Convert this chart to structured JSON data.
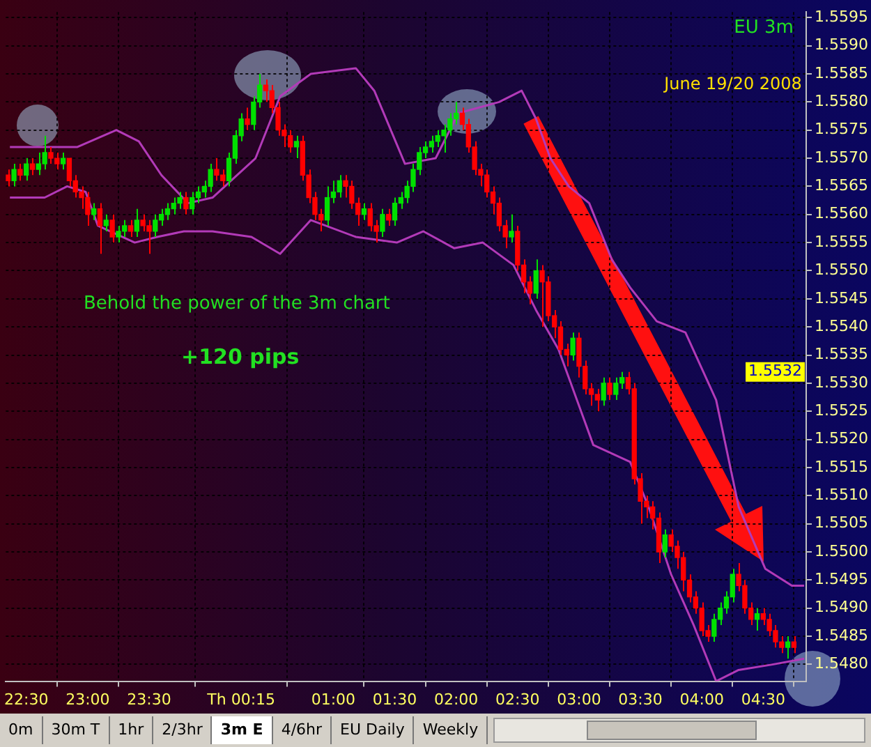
{
  "chart_data": {
    "type": "candlestick",
    "title": "EU 3m",
    "subtitle": "June 19/20 2008",
    "annotations": [
      "Behold the power of the 3m chart",
      "+120 pips",
      {
        "text": "1.5532",
        "y": 1.5532
      },
      "0m",
      "30m T",
      "1hr",
      "2/3hr",
      "3m E",
      "4/6hr",
      "EU Daily",
      "Weekly"
    ],
    "xlim": [
      "2008-06-18T22:20",
      "2008-06-19T04:51"
    ],
    "xticks": [
      {
        "value": "2008-06-18T22:30",
        "label": "22:30"
      },
      {
        "value": "2008-06-18T23:00",
        "label": "23:00"
      },
      {
        "value": "2008-06-18T23:30",
        "label": "23:30"
      },
      {
        "value": "2008-06-19T00:15",
        "label": "Th 00:15"
      },
      {
        "value": "2008-06-19T01:00",
        "label": "01:00"
      },
      {
        "value": "2008-06-19T01:30",
        "label": "01:30"
      },
      {
        "value": "2008-06-19T02:00",
        "label": "02:00"
      },
      {
        "value": "2008-06-19T02:30",
        "label": "02:30"
      },
      {
        "value": "2008-06-19T03:00",
        "label": "03:00"
      },
      {
        "value": "2008-06-19T03:30",
        "label": "03:30"
      },
      {
        "value": "2008-06-19T04:00",
        "label": "04:00"
      },
      {
        "value": "2008-06-19T04:30",
        "label": "04:30"
      }
    ],
    "ylim": [
      1.5477,
      1.5596
    ],
    "yticks": [
      {
        "value": 1.548,
        "label": "1.5480"
      },
      1.5485,
      {
        "value": 1.549,
        "label": "1.5490"
      },
      1.5495,
      {
        "value": 1.55,
        "label": "1.5500"
      },
      1.5505,
      {
        "value": 1.551,
        "label": "1.5510"
      },
      1.5515,
      {
        "value": 1.552,
        "label": "1.5520"
      },
      1.5525,
      {
        "value": 1.553,
        "label": "1.5530"
      },
      1.5535,
      {
        "value": 1.554,
        "label": "1.5540"
      },
      1.5545,
      {
        "value": 1.555,
        "label": "1.5550"
      },
      1.5555,
      {
        "value": 1.556,
        "label": "1.5560"
      },
      1.5565,
      {
        "value": 1.557,
        "label": "1.5570"
      },
      1.5575,
      {
        "value": 1.558,
        "label": "1.5580"
      },
      1.5585,
      {
        "value": 1.559,
        "label": "1.5590"
      },
      1.5595
    ],
    "grid": true,
    "legend": false,
    "marker": "none",
    "series": [
      {
        "x": [
          "2008-06-18T22:21",
          "2008-06-18T22:24",
          "2008-06-18T22:27",
          "2008-06-18T22:30",
          "2008-06-18T22:33",
          "2008-06-18T22:36",
          "2008-06-18T22:39",
          "2008-06-18T22:42",
          "2008-06-18T22:45",
          "2008-06-18T22:48",
          "2008-06-18T22:51",
          "2008-06-18T22:54",
          "2008-06-18T22:57",
          "2008-06-18T23:00",
          "2008-06-18T23:03",
          "2008-06-18T23:06",
          "2008-06-18T23:09",
          "2008-06-18T23:12",
          "2008-06-18T23:15",
          "2008-06-18T23:18",
          "2008-06-18T23:21",
          "2008-06-18T23:24",
          "2008-06-18T23:27",
          "2008-06-18T23:30",
          "2008-06-18T23:33",
          "2008-06-18T23:36",
          "2008-06-18T23:39",
          "2008-06-18T23:42",
          "2008-06-18T23:45",
          "2008-06-18T23:48",
          "2008-06-18T23:51",
          "2008-06-18T23:54",
          "2008-06-18T23:57",
          "2008-06-19T00:00",
          "2008-06-19T00:03",
          "2008-06-19T00:06",
          "2008-06-19T00:09",
          "2008-06-19T00:12",
          "2008-06-19T00:15",
          "2008-06-19T00:18",
          "2008-06-19T00:21",
          "2008-06-19T00:24",
          "2008-06-19T00:27",
          "2008-06-19T00:30",
          "2008-06-19T00:33",
          "2008-06-19T00:36",
          "2008-06-19T00:39",
          "2008-06-19T00:42",
          "2008-06-19T00:45",
          "2008-06-19T00:48",
          "2008-06-19T00:51",
          "2008-06-19T00:54",
          "2008-06-19T00:57",
          "2008-06-19T01:00",
          "2008-06-19T01:03",
          "2008-06-19T01:06",
          "2008-06-19T01:09",
          "2008-06-19T01:12",
          "2008-06-19T01:15",
          "2008-06-19T01:18",
          "2008-06-19T01:21",
          "2008-06-19T01:24",
          "2008-06-19T01:27",
          "2008-06-19T01:30",
          "2008-06-19T01:33",
          "2008-06-19T01:36",
          "2008-06-19T01:39",
          "2008-06-19T01:42",
          "2008-06-19T01:45",
          "2008-06-19T01:48",
          "2008-06-19T01:51",
          "2008-06-19T01:54",
          "2008-06-19T01:57",
          "2008-06-19T02:00",
          "2008-06-19T02:03",
          "2008-06-19T02:06",
          "2008-06-19T02:09",
          "2008-06-19T02:12",
          "2008-06-19T02:15",
          "2008-06-19T02:18",
          "2008-06-19T02:21",
          "2008-06-19T02:24",
          "2008-06-19T02:27",
          "2008-06-19T02:30",
          "2008-06-19T02:33",
          "2008-06-19T02:36",
          "2008-06-19T02:39",
          "2008-06-19T02:42",
          "2008-06-19T02:45",
          "2008-06-19T02:48",
          "2008-06-19T02:51",
          "2008-06-19T02:54",
          "2008-06-19T02:57",
          "2008-06-19T03:00",
          "2008-06-19T03:03",
          "2008-06-19T03:06",
          "2008-06-19T03:09",
          "2008-06-19T03:12",
          "2008-06-19T03:15",
          "2008-06-19T03:18",
          "2008-06-19T03:21",
          "2008-06-19T03:24",
          "2008-06-19T03:27",
          "2008-06-19T03:30",
          "2008-06-19T03:33",
          "2008-06-19T03:36",
          "2008-06-19T03:39",
          "2008-06-19T03:42",
          "2008-06-19T03:45",
          "2008-06-19T03:48",
          "2008-06-19T03:51",
          "2008-06-19T03:54",
          "2008-06-19T03:57",
          "2008-06-19T04:00",
          "2008-06-19T04:03",
          "2008-06-19T04:06",
          "2008-06-19T04:09",
          "2008-06-19T04:12",
          "2008-06-19T04:15",
          "2008-06-19T04:18",
          "2008-06-19T04:21",
          "2008-06-19T04:24",
          "2008-06-19T04:27",
          "2008-06-19T04:30",
          "2008-06-19T04:33",
          "2008-06-19T04:36",
          "2008-06-19T04:39",
          "2008-06-19T04:42",
          "2008-06-19T04:45"
        ],
        "ohlc": [
          [
            1.5567,
            1.5568,
            1.5565,
            1.5566
          ],
          [
            1.5566,
            1.5569,
            1.5565,
            1.5568
          ],
          [
            1.5568,
            1.5569,
            1.5566,
            1.5567
          ],
          [
            1.5567,
            1.557,
            1.5566,
            1.5569
          ],
          [
            1.5569,
            1.557,
            1.5567,
            1.5568
          ],
          [
            1.5568,
            1.5571,
            1.5567,
            1.5569
          ],
          [
            1.5569,
            1.5574,
            1.5568,
            1.5571
          ],
          [
            1.5571,
            1.5572,
            1.5569,
            1.557
          ],
          [
            1.557,
            1.5571,
            1.5568,
            1.5569
          ],
          [
            1.5569,
            1.5571,
            1.5568,
            1.557
          ],
          [
            1.557,
            1.557,
            1.5565,
            1.5566
          ],
          [
            1.5566,
            1.5567,
            1.5563,
            1.5564
          ],
          [
            1.5564,
            1.5565,
            1.5561,
            1.5563
          ],
          [
            1.5563,
            1.5564,
            1.5558,
            1.556
          ],
          [
            1.556,
            1.5562,
            1.5559,
            1.5561
          ],
          [
            1.5561,
            1.5562,
            1.5553,
            1.5558
          ],
          [
            1.5558,
            1.556,
            1.5557,
            1.5559
          ],
          [
            1.5559,
            1.556,
            1.5555,
            1.5556
          ],
          [
            1.5556,
            1.5558,
            1.5555,
            1.5557
          ],
          [
            1.5557,
            1.5559,
            1.5556,
            1.5558
          ],
          [
            1.5558,
            1.5559,
            1.5556,
            1.5557
          ],
          [
            1.5557,
            1.5561,
            1.5556,
            1.5559
          ],
          [
            1.5559,
            1.556,
            1.5557,
            1.5558
          ],
          [
            1.5558,
            1.5559,
            1.5553,
            1.5557
          ],
          [
            1.5557,
            1.556,
            1.5556,
            1.5559
          ],
          [
            1.5559,
            1.5561,
            1.5558,
            1.556
          ],
          [
            1.556,
            1.5562,
            1.5559,
            1.5561
          ],
          [
            1.5561,
            1.5563,
            1.556,
            1.5562
          ],
          [
            1.5562,
            1.5564,
            1.5561,
            1.5563
          ],
          [
            1.5563,
            1.5564,
            1.556,
            1.5561
          ],
          [
            1.5561,
            1.5564,
            1.556,
            1.5563
          ],
          [
            1.5563,
            1.5565,
            1.5562,
            1.5564
          ],
          [
            1.5564,
            1.5566,
            1.5563,
            1.5565
          ],
          [
            1.5565,
            1.5569,
            1.5564,
            1.5568
          ],
          [
            1.5568,
            1.557,
            1.5566,
            1.5567
          ],
          [
            1.5567,
            1.5568,
            1.5565,
            1.5566
          ],
          [
            1.5566,
            1.5571,
            1.5565,
            1.557
          ],
          [
            1.557,
            1.5575,
            1.5569,
            1.5574
          ],
          [
            1.5574,
            1.5578,
            1.5573,
            1.5577
          ],
          [
            1.5577,
            1.5579,
            1.5575,
            1.5576
          ],
          [
            1.5576,
            1.5581,
            1.5575,
            1.558
          ],
          [
            1.558,
            1.5585,
            1.5579,
            1.5583
          ],
          [
            1.5583,
            1.5584,
            1.558,
            1.5582
          ],
          [
            1.5582,
            1.5583,
            1.5578,
            1.5579
          ],
          [
            1.5579,
            1.558,
            1.5574,
            1.5575
          ],
          [
            1.5575,
            1.5576,
            1.5572,
            1.5574
          ],
          [
            1.5574,
            1.5575,
            1.5571,
            1.5572
          ],
          [
            1.5572,
            1.5574,
            1.557,
            1.5573
          ],
          [
            1.5573,
            1.5574,
            1.5566,
            1.5567
          ],
          [
            1.5567,
            1.5568,
            1.5562,
            1.5563
          ],
          [
            1.5563,
            1.5564,
            1.5559,
            1.556
          ],
          [
            1.556,
            1.5561,
            1.5557,
            1.5559
          ],
          [
            1.5559,
            1.5565,
            1.5558,
            1.5563
          ],
          [
            1.5563,
            1.5566,
            1.5562,
            1.5564
          ],
          [
            1.5564,
            1.5567,
            1.5563,
            1.5566
          ],
          [
            1.5566,
            1.5567,
            1.5563,
            1.5565
          ],
          [
            1.5565,
            1.5566,
            1.5561,
            1.5562
          ],
          [
            1.5562,
            1.5563,
            1.5558,
            1.556
          ],
          [
            1.556,
            1.5562,
            1.5559,
            1.5561
          ],
          [
            1.5561,
            1.5562,
            1.5557,
            1.5558
          ],
          [
            1.5558,
            1.5559,
            1.5555,
            1.5557
          ],
          [
            1.5557,
            1.5561,
            1.5556,
            1.556
          ],
          [
            1.556,
            1.5561,
            1.5558,
            1.5559
          ],
          [
            1.5559,
            1.5563,
            1.5558,
            1.5562
          ],
          [
            1.5562,
            1.5564,
            1.5561,
            1.5563
          ],
          [
            1.5563,
            1.5566,
            1.5562,
            1.5565
          ],
          [
            1.5565,
            1.5569,
            1.5564,
            1.5568
          ],
          [
            1.5568,
            1.5572,
            1.5567,
            1.5571
          ],
          [
            1.5571,
            1.5573,
            1.557,
            1.5572
          ],
          [
            1.5572,
            1.5574,
            1.5571,
            1.5573
          ],
          [
            1.5573,
            1.5575,
            1.5572,
            1.5574
          ],
          [
            1.5574,
            1.5576,
            1.5571,
            1.5575
          ],
          [
            1.5575,
            1.5578,
            1.5574,
            1.5577
          ],
          [
            1.5577,
            1.558,
            1.5576,
            1.5578
          ],
          [
            1.5578,
            1.5579,
            1.5575,
            1.5576
          ],
          [
            1.5576,
            1.5577,
            1.5571,
            1.5572
          ],
          [
            1.5572,
            1.5573,
            1.5567,
            1.5568
          ],
          [
            1.5568,
            1.5569,
            1.5565,
            1.5567
          ],
          [
            1.5567,
            1.5568,
            1.5563,
            1.5564
          ],
          [
            1.5564,
            1.5565,
            1.556,
            1.5562
          ],
          [
            1.5562,
            1.5563,
            1.5557,
            1.5558
          ],
          [
            1.5558,
            1.5559,
            1.5554,
            1.5556
          ],
          [
            1.5556,
            1.556,
            1.5555,
            1.5557
          ],
          [
            1.5557,
            1.5558,
            1.555,
            1.5551
          ],
          [
            1.5551,
            1.5552,
            1.5546,
            1.5548
          ],
          [
            1.5548,
            1.5549,
            1.5544,
            1.5546
          ],
          [
            1.5546,
            1.5552,
            1.5545,
            1.555
          ],
          [
            1.555,
            1.5551,
            1.554,
            1.5548
          ],
          [
            1.5548,
            1.5549,
            1.5541,
            1.5542
          ],
          [
            1.5542,
            1.5543,
            1.5538,
            1.554
          ],
          [
            1.554,
            1.5541,
            1.5535,
            1.5536
          ],
          [
            1.5536,
            1.5537,
            1.5533,
            1.5535
          ],
          [
            1.5535,
            1.5539,
            1.5534,
            1.5538
          ],
          [
            1.5538,
            1.5539,
            1.5531,
            1.5533
          ],
          [
            1.5533,
            1.5534,
            1.5528,
            1.5529
          ],
          [
            1.5529,
            1.553,
            1.5526,
            1.5528
          ],
          [
            1.5528,
            1.5529,
            1.5525,
            1.5527
          ],
          [
            1.5527,
            1.5531,
            1.5526,
            1.553
          ],
          [
            1.553,
            1.5531,
            1.5527,
            1.5528
          ],
          [
            1.5528,
            1.5531,
            1.5527,
            1.553
          ],
          [
            1.553,
            1.5532,
            1.5529,
            1.5531
          ],
          [
            1.5531,
            1.5532,
            1.5528,
            1.5529
          ],
          [
            1.5529,
            1.553,
            1.5512,
            1.5513
          ],
          [
            1.5513,
            1.5514,
            1.5505,
            1.5509
          ],
          [
            1.5509,
            1.551,
            1.5506,
            1.5508
          ],
          [
            1.5508,
            1.5509,
            1.5504,
            1.5506
          ],
          [
            1.5506,
            1.5507,
            1.5498,
            1.55
          ],
          [
            1.55,
            1.5504,
            1.5499,
            1.5503
          ],
          [
            1.5503,
            1.5504,
            1.55,
            1.5501
          ],
          [
            1.5501,
            1.5502,
            1.5497,
            1.5499
          ],
          [
            1.5499,
            1.55,
            1.5493,
            1.5495
          ],
          [
            1.5495,
            1.5496,
            1.5491,
            1.5492
          ],
          [
            1.5492,
            1.5493,
            1.5489,
            1.549
          ],
          [
            1.549,
            1.5491,
            1.5485,
            1.5486
          ],
          [
            1.5486,
            1.5487,
            1.5484,
            1.5485
          ],
          [
            1.5485,
            1.5489,
            1.5484,
            1.5488
          ],
          [
            1.5488,
            1.5491,
            1.5487,
            1.549
          ],
          [
            1.549,
            1.5493,
            1.5489,
            1.5492
          ],
          [
            1.5492,
            1.5497,
            1.5491,
            1.5496
          ],
          [
            1.5496,
            1.5498,
            1.5493,
            1.5494
          ],
          [
            1.5494,
            1.5495,
            1.5489,
            1.549
          ],
          [
            1.549,
            1.5491,
            1.5487,
            1.5488
          ],
          [
            1.5488,
            1.549,
            1.5486,
            1.5489
          ],
          [
            1.5489,
            1.549,
            1.5487,
            1.5488
          ],
          [
            1.5488,
            1.5489,
            1.5485,
            1.5486
          ],
          [
            1.5486,
            1.5487,
            1.5483,
            1.5484
          ],
          [
            1.5484,
            1.5485,
            1.5482,
            1.5483
          ],
          [
            1.5483,
            1.5485,
            1.5481,
            1.5484
          ],
          [
            1.5484,
            1.5485,
            1.5482,
            1.5483
          ]
        ],
        "colors": [
          "#ff0000",
          "#00e000",
          "#ff0000",
          "#00e000",
          "#ff0000",
          "#00e000",
          "#00e000",
          "#ff0000",
          "#ff0000",
          "#00e000",
          "#ff0000",
          "#ff0000",
          "#ff0000",
          "#ff0000",
          "#00e000",
          "#ff0000",
          "#00e000",
          "#ff0000",
          "#00e000",
          "#00e000",
          "#ff0000",
          "#00e000",
          "#ff0000",
          "#ff0000",
          "#00e000",
          "#00e000",
          "#00e000",
          "#00e000",
          "#00e000",
          "#ff0000",
          "#00e000",
          "#00e000",
          "#00e000",
          "#00e000",
          "#ff0000",
          "#ff0000",
          "#00e000",
          "#00e000",
          "#00e000",
          "#ff0000",
          "#00e000",
          "#00e000",
          "#ff0000",
          "#ff0000",
          "#ff0000",
          "#ff0000",
          "#ff0000",
          "#00e000",
          "#ff0000",
          "#ff0000",
          "#ff0000",
          "#ff0000",
          "#00e000",
          "#00e000",
          "#00e000",
          "#ff0000",
          "#ff0000",
          "#ff0000",
          "#00e000",
          "#ff0000",
          "#ff0000",
          "#00e000",
          "#ff0000",
          "#00e000",
          "#00e000",
          "#00e000",
          "#00e000",
          "#00e000",
          "#00e000",
          "#00e000",
          "#00e000",
          "#00e000",
          "#00e000",
          "#00e000",
          "#ff0000",
          "#ff0000",
          "#ff0000",
          "#ff0000",
          "#ff0000",
          "#ff0000",
          "#ff0000",
          "#ff0000",
          "#00e000",
          "#ff0000",
          "#ff0000",
          "#ff0000",
          "#00e000",
          "#ff0000",
          "#ff0000",
          "#ff0000",
          "#ff0000",
          "#ff0000",
          "#00e000",
          "#ff0000",
          "#ff0000",
          "#ff0000",
          "#ff0000",
          "#00e000",
          "#ff0000",
          "#00e000",
          "#00e000",
          "#ff0000",
          "#ff0000",
          "#ff0000",
          "#ff0000",
          "#ff0000",
          "#ff0000",
          "#00e000",
          "#ff0000",
          "#ff0000",
          "#ff0000",
          "#ff0000",
          "#ff0000",
          "#ff0000",
          "#ff0000",
          "#00e000",
          "#00e000",
          "#00e000",
          "#00e000",
          "#ff0000",
          "#ff0000",
          "#ff0000",
          "#00e000",
          "#ff0000",
          "#ff0000",
          "#ff0000",
          "#ff0000",
          "#00e000",
          "#ff0000"
        ]
      },
      {
        "type": "line",
        "color": "#b23ab8",
        "x": [
          "2008-06-18T22:22",
          "2008-06-18T22:55",
          "2008-06-18T23:14",
          "2008-06-18T23:25",
          "2008-06-18T23:36",
          "2008-06-18T23:49",
          "2008-06-19T00:01",
          "2008-06-19T00:22",
          "2008-06-19T00:34",
          "2008-06-19T00:49",
          "2008-06-19T01:11",
          "2008-06-19T01:20",
          "2008-06-19T01:35",
          "2008-06-19T01:50",
          "2008-06-19T02:01",
          "2008-06-19T02:21",
          "2008-06-19T02:32",
          "2008-06-19T02:39",
          "2008-06-19T02:46",
          "2008-06-19T02:55",
          "2008-06-19T03:05",
          "2008-06-19T03:16",
          "2008-06-19T03:25",
          "2008-06-19T03:38",
          "2008-06-19T03:52",
          "2008-06-19T04:07",
          "2008-06-19T04:18",
          "2008-06-19T04:31",
          "2008-06-19T04:44",
          "2008-06-19T04:50"
        ],
        "values": [
          1.5572,
          1.5572,
          1.5575,
          1.5573,
          1.5567,
          1.5562,
          1.5563,
          1.557,
          1.5581,
          1.5585,
          1.5586,
          1.5582,
          1.5569,
          1.557,
          1.5578,
          1.558,
          1.5582,
          1.5577,
          1.557,
          1.5565,
          1.5562,
          1.5552,
          1.5547,
          1.5541,
          1.5539,
          1.5527,
          1.5508,
          1.5497,
          1.5494,
          1.5494
        ]
      },
      {
        "type": "line",
        "color": "#b23ab8",
        "x": [
          "2008-06-18T22:22",
          "2008-06-18T22:39",
          "2008-06-18T22:50",
          "2008-06-18T22:59",
          "2008-06-18T23:05",
          "2008-06-18T23:23",
          "2008-06-18T23:34",
          "2008-06-18T23:47",
          "2008-06-19T00:01",
          "2008-06-19T00:20",
          "2008-06-19T00:34",
          "2008-06-19T00:49",
          "2008-06-19T01:11",
          "2008-06-19T01:31",
          "2008-06-19T01:44",
          "2008-06-19T01:59",
          "2008-06-19T02:13",
          "2008-06-19T02:28",
          "2008-06-19T02:39",
          "2008-06-19T02:50",
          "2008-06-19T02:59",
          "2008-06-19T03:07",
          "2008-06-19T03:25",
          "2008-06-19T03:34",
          "2008-06-19T03:45",
          "2008-06-19T03:56",
          "2008-06-19T04:07",
          "2008-06-19T04:18",
          "2008-06-19T04:35",
          "2008-06-19T04:50"
        ],
        "values": [
          1.5563,
          1.5563,
          1.5565,
          1.5564,
          1.5558,
          1.5555,
          1.5556,
          1.5557,
          1.5557,
          1.5556,
          1.5553,
          1.5559,
          1.5556,
          1.5555,
          1.5557,
          1.5554,
          1.5555,
          1.5551,
          1.5543,
          1.5536,
          1.5527,
          1.5519,
          1.5516,
          1.5508,
          1.5496,
          1.5487,
          1.5477,
          1.5479,
          1.548,
          1.5481
        ]
      }
    ]
  }
}
